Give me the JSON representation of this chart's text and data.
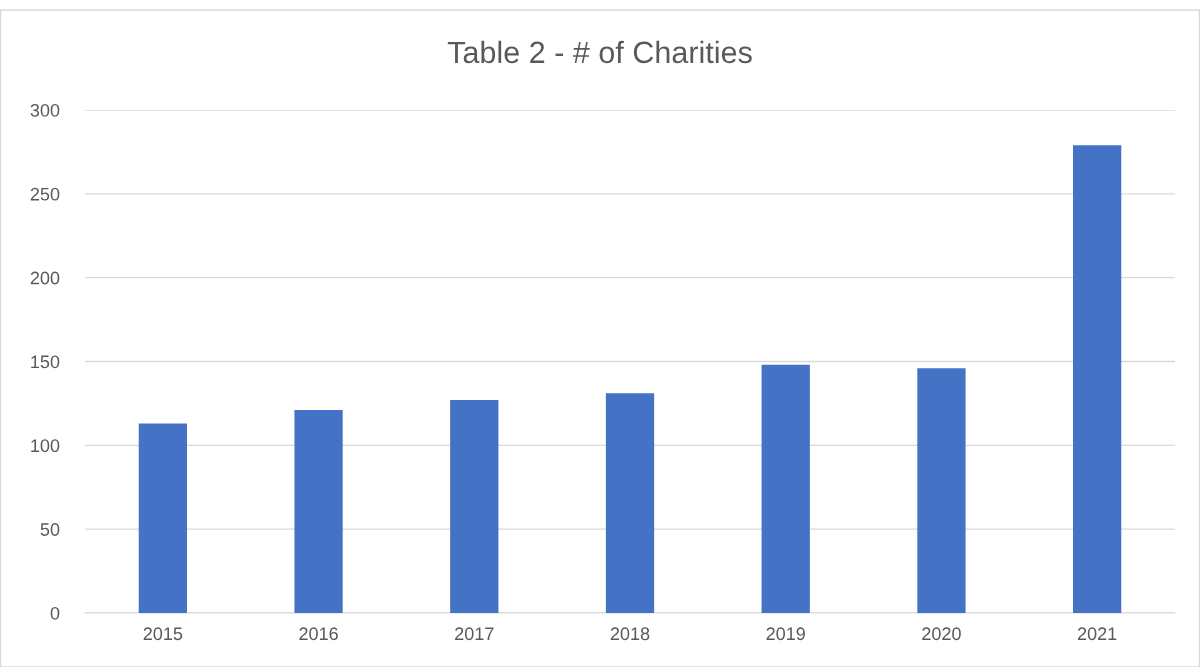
{
  "chart_data": {
    "type": "bar",
    "title": "Table 2 - # of Charities",
    "categories": [
      "2015",
      "2016",
      "2017",
      "2018",
      "2019",
      "2020",
      "2021"
    ],
    "values": [
      113,
      121,
      127,
      131,
      148,
      146,
      279
    ],
    "color": "#4472c4",
    "ylim": [
      0,
      300
    ],
    "yticks": [
      0,
      50,
      100,
      150,
      200,
      250,
      300
    ],
    "grid": "y",
    "legend": false
  }
}
